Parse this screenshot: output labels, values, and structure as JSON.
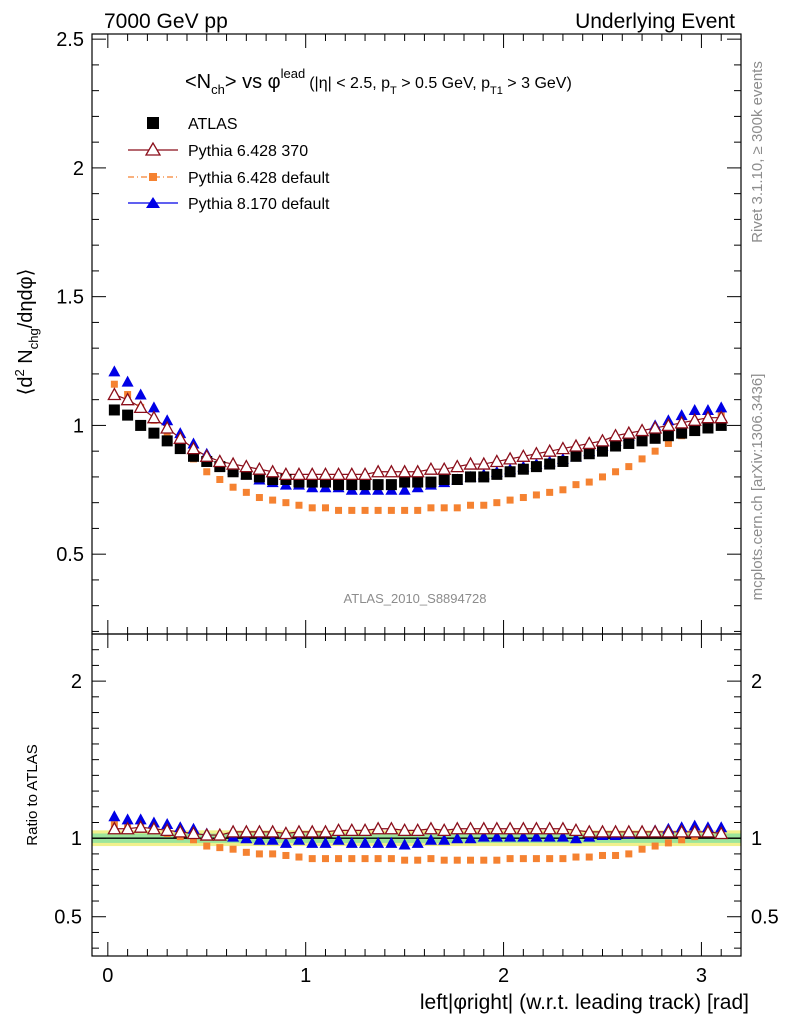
{
  "header": {
    "left": "7000 GeV pp",
    "right": "Underlying Event"
  },
  "title": {
    "main": "<N",
    "sub_ch": "ch",
    "vs": "> vs φ",
    "lead": "lead",
    "cuts_a": "(|η| < 2.5, p",
    "sub_T": "T",
    "cuts_b": " > 0.5 GeV, p",
    "sub_T1": "T1",
    "cuts_c": " > 3 GeV)"
  },
  "ylabel_top": {
    "a": "⟨d",
    "sup2": "2",
    "b": " N",
    "sub_chg": "chg",
    "c": "/dηdφ⟩"
  },
  "ylabel_ratio": "Ratio to ATLAS",
  "xlabel": "left|φright| (w.r.t. leading track) [rad]",
  "watermark": "ATLAS_2010_S8894728",
  "side_right_top": "Rivet 3.1.10, ≥ 300k events",
  "side_right_bottom": "mcplots.cern.ch [arXiv:1306.3436]",
  "colors": {
    "atlas": "#000000",
    "p6_370": "#8b0f1b",
    "p6_default": "#f58231",
    "p8": "#0000e6",
    "band_green": "#9be59b",
    "band_yellow": "#f0f08c"
  },
  "chart_data": [
    {
      "type": "scatter",
      "xlim": [
        -0.08,
        3.2
      ],
      "ylim": [
        0.19,
        2.52
      ],
      "yticks": [
        "0.5",
        "1",
        "1.5",
        "2",
        "2.5"
      ],
      "xticks": [
        "0",
        "1",
        "2",
        "3"
      ],
      "x": [
        0.033,
        0.1,
        0.166,
        0.233,
        0.3,
        0.366,
        0.433,
        0.5,
        0.566,
        0.633,
        0.7,
        0.766,
        0.833,
        0.9,
        0.966,
        1.033,
        1.1,
        1.166,
        1.233,
        1.3,
        1.366,
        1.433,
        1.5,
        1.566,
        1.633,
        1.7,
        1.766,
        1.833,
        1.9,
        1.966,
        2.033,
        2.1,
        2.166,
        2.233,
        2.3,
        2.366,
        2.433,
        2.5,
        2.566,
        2.633,
        2.7,
        2.766,
        2.833,
        2.9,
        2.966,
        3.033,
        3.1
      ],
      "series": [
        {
          "name": "ATLAS",
          "marker": "square-filled",
          "values": [
            1.06,
            1.04,
            1.0,
            0.97,
            0.94,
            0.91,
            0.88,
            0.86,
            0.84,
            0.82,
            0.81,
            0.8,
            0.79,
            0.79,
            0.78,
            0.78,
            0.78,
            0.77,
            0.77,
            0.77,
            0.77,
            0.77,
            0.78,
            0.78,
            0.78,
            0.79,
            0.79,
            0.8,
            0.8,
            0.81,
            0.82,
            0.83,
            0.84,
            0.85,
            0.86,
            0.88,
            0.89,
            0.9,
            0.92,
            0.93,
            0.94,
            0.95,
            0.96,
            0.97,
            0.98,
            0.99,
            1.0
          ]
        },
        {
          "name": "Pythia 6.428 370",
          "marker": "triangle-open",
          "values": [
            1.12,
            1.1,
            1.07,
            1.03,
            0.99,
            0.95,
            0.91,
            0.88,
            0.86,
            0.85,
            0.84,
            0.83,
            0.82,
            0.81,
            0.81,
            0.81,
            0.81,
            0.81,
            0.81,
            0.81,
            0.82,
            0.82,
            0.82,
            0.82,
            0.83,
            0.83,
            0.84,
            0.85,
            0.85,
            0.86,
            0.87,
            0.88,
            0.89,
            0.9,
            0.91,
            0.92,
            0.93,
            0.94,
            0.96,
            0.97,
            0.98,
            0.99,
            1.0,
            1.01,
            1.02,
            1.03,
            1.03
          ]
        },
        {
          "name": "Pythia 6.428 default",
          "marker": "square-small",
          "values": [
            1.16,
            1.12,
            1.07,
            1.02,
            0.97,
            0.92,
            0.87,
            0.82,
            0.79,
            0.76,
            0.74,
            0.72,
            0.71,
            0.7,
            0.69,
            0.68,
            0.68,
            0.67,
            0.67,
            0.67,
            0.67,
            0.67,
            0.67,
            0.67,
            0.68,
            0.68,
            0.68,
            0.69,
            0.69,
            0.7,
            0.71,
            0.72,
            0.73,
            0.74,
            0.75,
            0.77,
            0.78,
            0.8,
            0.82,
            0.84,
            0.87,
            0.9,
            0.93,
            0.96,
            0.99,
            1.02,
            1.04
          ]
        },
        {
          "name": "Pythia 8.170 default",
          "marker": "triangle-filled",
          "values": [
            1.21,
            1.17,
            1.12,
            1.07,
            1.02,
            0.97,
            0.93,
            0.89,
            0.86,
            0.83,
            0.81,
            0.79,
            0.78,
            0.77,
            0.77,
            0.76,
            0.76,
            0.76,
            0.75,
            0.75,
            0.75,
            0.75,
            0.75,
            0.76,
            0.77,
            0.78,
            0.79,
            0.8,
            0.81,
            0.82,
            0.83,
            0.84,
            0.85,
            0.86,
            0.87,
            0.88,
            0.9,
            0.92,
            0.94,
            0.96,
            0.98,
            1.0,
            1.02,
            1.04,
            1.06,
            1.06,
            1.07
          ]
        }
      ]
    },
    {
      "type": "scatter",
      "xlim": [
        -0.08,
        3.2
      ],
      "ylim": [
        0.25,
        2.3
      ],
      "yticks": [
        "0.5",
        "1",
        "2"
      ],
      "ylabel": "Ratio to ATLAS",
      "band": {
        "yellow": [
          0.95,
          1.05
        ],
        "green": [
          0.97,
          1.03
        ]
      },
      "series": [
        {
          "name": "Pythia 6.428 370",
          "marker": "triangle-open",
          "values": [
            1.06,
            1.06,
            1.07,
            1.06,
            1.05,
            1.04,
            1.03,
            1.02,
            1.02,
            1.04,
            1.04,
            1.04,
            1.04,
            1.03,
            1.04,
            1.04,
            1.04,
            1.05,
            1.05,
            1.05,
            1.06,
            1.06,
            1.05,
            1.05,
            1.06,
            1.05,
            1.06,
            1.06,
            1.06,
            1.06,
            1.06,
            1.06,
            1.06,
            1.06,
            1.06,
            1.05,
            1.04,
            1.04,
            1.04,
            1.04,
            1.04,
            1.04,
            1.04,
            1.04,
            1.04,
            1.04,
            1.03
          ]
        },
        {
          "name": "Pythia 6.428 default",
          "marker": "square-small",
          "values": [
            1.09,
            1.08,
            1.07,
            1.05,
            1.03,
            1.01,
            0.99,
            0.95,
            0.94,
            0.93,
            0.91,
            0.9,
            0.9,
            0.89,
            0.88,
            0.87,
            0.87,
            0.87,
            0.87,
            0.87,
            0.87,
            0.87,
            0.86,
            0.86,
            0.87,
            0.86,
            0.86,
            0.86,
            0.86,
            0.86,
            0.87,
            0.87,
            0.87,
            0.87,
            0.87,
            0.88,
            0.88,
            0.89,
            0.89,
            0.9,
            0.93,
            0.95,
            0.97,
            0.99,
            1.01,
            1.03,
            1.04
          ]
        },
        {
          "name": "Pythia 8.170 default",
          "marker": "triangle-filled",
          "values": [
            1.14,
            1.12,
            1.12,
            1.1,
            1.09,
            1.07,
            1.06,
            1.03,
            1.02,
            1.01,
            1.0,
            0.99,
            0.99,
            0.97,
            0.99,
            0.97,
            0.97,
            0.99,
            0.97,
            0.97,
            0.97,
            0.97,
            0.96,
            0.97,
            0.99,
            0.99,
            1.0,
            1.0,
            1.01,
            1.01,
            1.01,
            1.01,
            1.01,
            1.01,
            1.01,
            1.0,
            1.01,
            1.02,
            1.02,
            1.03,
            1.04,
            1.05,
            1.06,
            1.07,
            1.08,
            1.07,
            1.07
          ]
        }
      ]
    }
  ]
}
